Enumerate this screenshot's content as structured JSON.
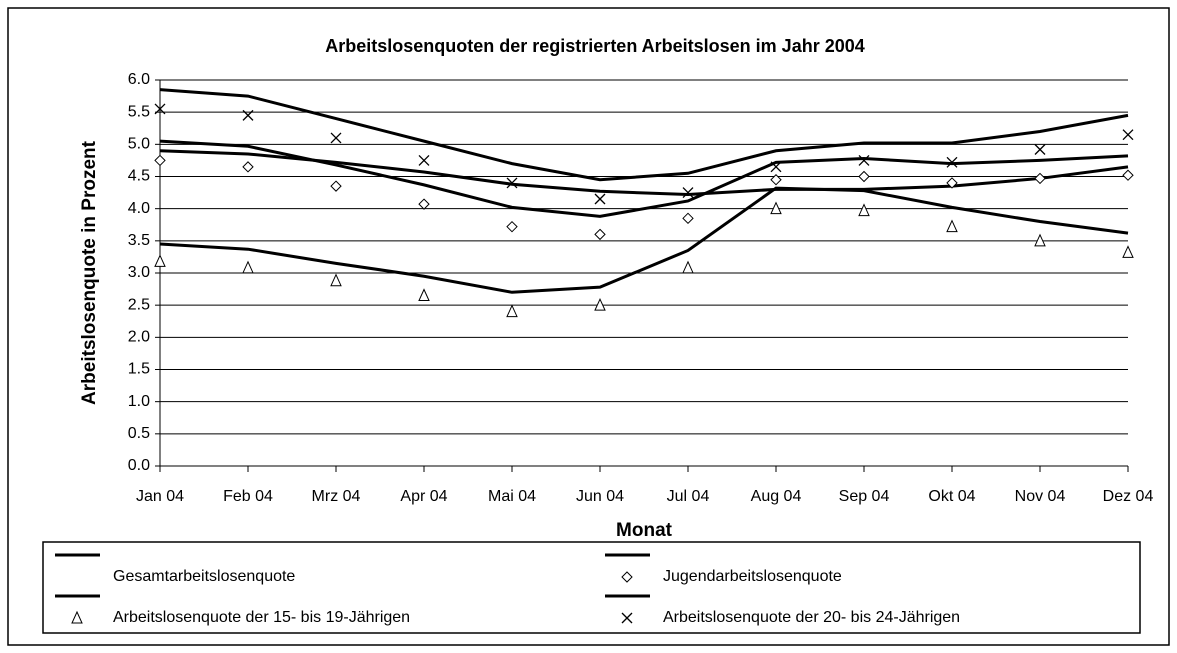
{
  "chart_data": {
    "type": "line",
    "title": "Arbeitslosenquoten der registrierten Arbeitslosen im Jahr 2004",
    "ylabel": "Arbeitslosenquote in Prozent",
    "xlabel": "Monat",
    "categories": [
      "Jan 04",
      "Feb 04",
      "Mrz 04",
      "Apr 04",
      "Mai 04",
      "Jun 04",
      "Jul 04",
      "Aug 04",
      "Sep 04",
      "Okt 04",
      "Nov 04",
      "Dez 04"
    ],
    "series": [
      {
        "name": "Gesamtarbeitslosenquote",
        "color": "#000000",
        "values": [
          4.9,
          4.85,
          4.72,
          4.57,
          4.38,
          4.27,
          4.22,
          4.3,
          4.3,
          4.35,
          4.47,
          4.65
        ]
      },
      {
        "name": "Jugendarbeitslosenquote",
        "color": "#000000",
        "marker": "diamond",
        "values": [
          5.05,
          4.97,
          4.68,
          4.37,
          4.02,
          3.88,
          4.12,
          4.72,
          4.78,
          4.7,
          4.75,
          4.82
        ],
        "marker_values": [
          4.75,
          4.65,
          4.35,
          4.07,
          3.72,
          3.6,
          3.85,
          4.45,
          4.5,
          4.4,
          4.47,
          4.52
        ]
      },
      {
        "name": "Arbeitslosenquote der 15- bis 19-Jährigen",
        "color": "#000000",
        "marker": "triangle",
        "values": [
          3.45,
          3.37,
          3.15,
          2.95,
          2.7,
          2.78,
          3.35,
          4.32,
          4.28,
          4.02,
          3.8,
          3.62
        ],
        "marker_values": [
          3.18,
          3.08,
          2.88,
          2.65,
          2.4,
          2.5,
          3.08,
          4.0,
          3.97,
          3.72,
          3.5,
          3.32
        ]
      },
      {
        "name": "Arbeitslosenquote der 20- bis 24-Jährigen",
        "color": "#000000",
        "marker": "x",
        "values": [
          5.85,
          5.75,
          5.4,
          5.05,
          4.7,
          4.45,
          4.55,
          4.9,
          5.02,
          5.02,
          5.2,
          5.45
        ],
        "marker_values": [
          5.55,
          5.45,
          5.1,
          4.75,
          4.4,
          4.15,
          4.25,
          4.65,
          4.75,
          4.72,
          4.92,
          5.15
        ]
      }
    ],
    "ylim": [
      0,
      6
    ],
    "yticks": [
      {
        "value": 0,
        "label": "0.0"
      },
      {
        "value": 0.5,
        "label": "0.5"
      },
      {
        "value": 1,
        "label": "1.0"
      },
      {
        "value": 1.5,
        "label": "1.5"
      },
      {
        "value": 2,
        "label": "2.0"
      },
      {
        "value": 2.5,
        "label": "2.5"
      },
      {
        "value": 3,
        "label": "3.0"
      },
      {
        "value": 3.5,
        "label": "3.5"
      },
      {
        "value": 4,
        "label": "4.0"
      },
      {
        "value": 4.5,
        "label": "4.5"
      },
      {
        "value": 5,
        "label": "5.0"
      },
      {
        "value": 5.5,
        "label": "5.5"
      },
      {
        "value": 6,
        "label": "6.0"
      }
    ],
    "grid": true,
    "legend": "bottom"
  }
}
